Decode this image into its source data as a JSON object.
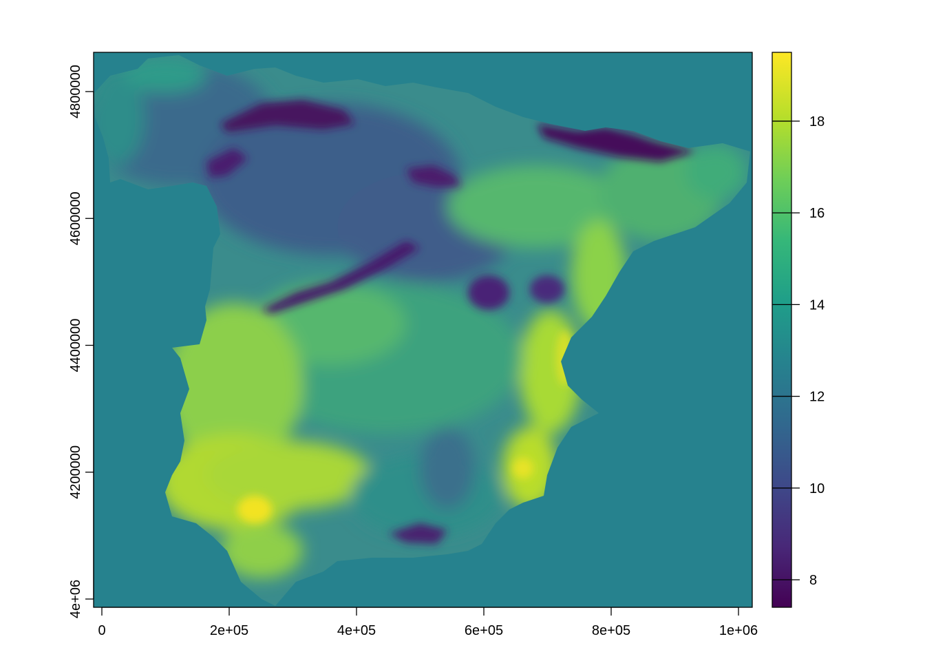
{
  "map": {
    "background_value": 12.9,
    "x_axis": {
      "ticks": [
        {
          "value": 0,
          "label": "0"
        },
        {
          "value": 200000,
          "label": "2e+05"
        },
        {
          "value": 400000,
          "label": "4e+05"
        },
        {
          "value": 600000,
          "label": "6e+05"
        },
        {
          "value": 800000,
          "label": "8e+05"
        },
        {
          "value": 1000000,
          "label": "1e+06"
        }
      ]
    },
    "y_axis": {
      "ticks": [
        {
          "value": 4000000,
          "label": "4e+06"
        },
        {
          "value": 4200000,
          "label": "4200000"
        },
        {
          "value": 4400000,
          "label": "4400000"
        },
        {
          "value": 4600000,
          "label": "4600000"
        },
        {
          "value": 4800000,
          "label": "4800000"
        }
      ]
    },
    "legend": {
      "range": [
        7.4,
        19.5
      ],
      "ticks": [
        {
          "value": 8,
          "label": "8"
        },
        {
          "value": 10,
          "label": "10"
        },
        {
          "value": 12,
          "label": "12"
        },
        {
          "value": 14,
          "label": "14"
        },
        {
          "value": 16,
          "label": "16"
        },
        {
          "value": 18,
          "label": "18"
        }
      ],
      "palette": [
        "#440154",
        "#482878",
        "#3e4989",
        "#31688e",
        "#26828e",
        "#1f9e89",
        "#35b779",
        "#6ece58",
        "#b5de2b",
        "#fde725"
      ]
    }
  }
}
